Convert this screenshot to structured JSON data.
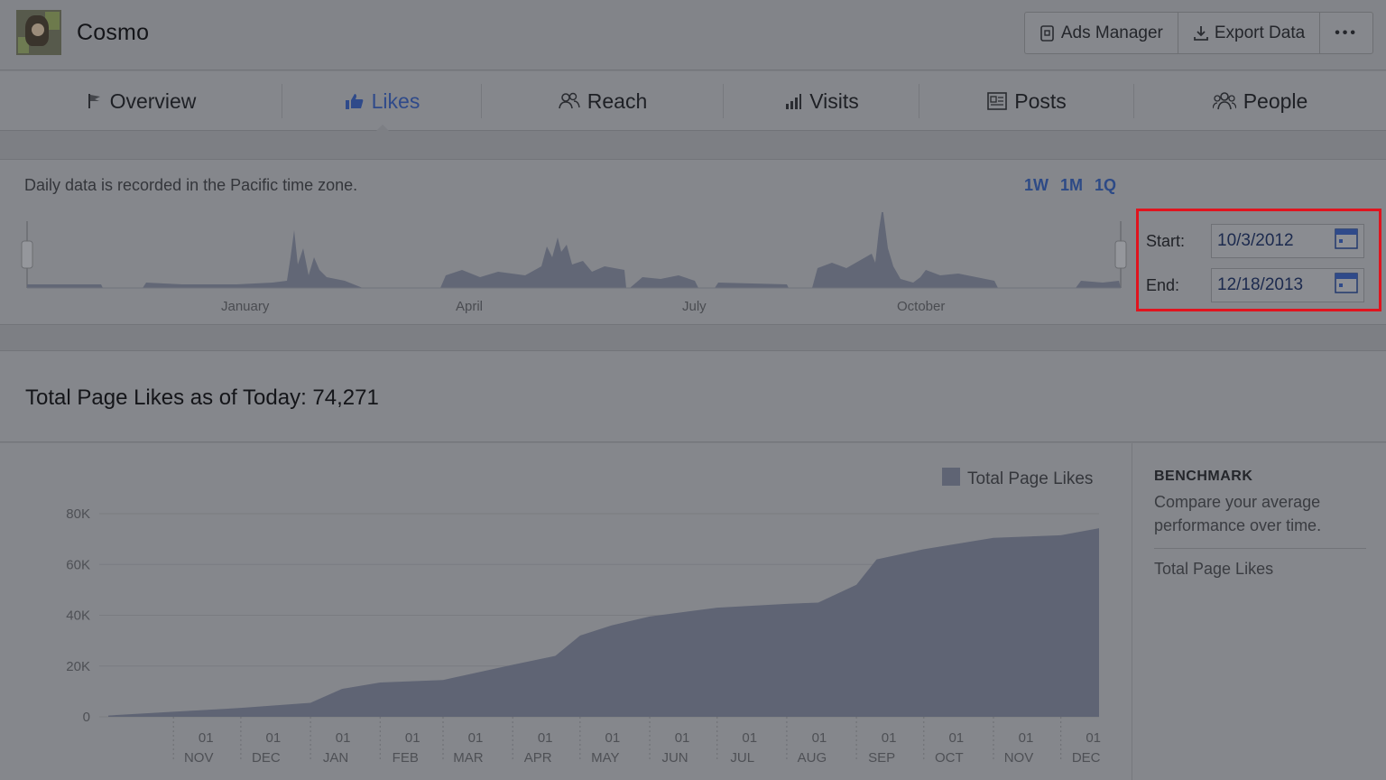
{
  "header": {
    "page_name": "Cosmo",
    "buttons": {
      "ads_manager": "Ads Manager",
      "export_data": "Export Data",
      "more": "•••"
    }
  },
  "tabs": [
    {
      "label": "Overview",
      "icon": "flag-icon"
    },
    {
      "label": "Likes",
      "icon": "thumbs-up-icon",
      "active": true
    },
    {
      "label": "Reach",
      "icon": "people-icon"
    },
    {
      "label": "Visits",
      "icon": "bar-signal-icon"
    },
    {
      "label": "Posts",
      "icon": "posts-icon"
    },
    {
      "label": "People",
      "icon": "group-icon"
    }
  ],
  "timeline": {
    "note": "Daily data is recorded in the Pacific time zone.",
    "ranges": [
      "1W",
      "1M",
      "1Q"
    ],
    "month_labels": [
      "January",
      "April",
      "July",
      "October"
    ],
    "start_label": "Start:",
    "start_value": "10/3/2012",
    "end_label": "End:",
    "end_value": "12/18/2013"
  },
  "total": {
    "title": "Total Page Likes as of Today: 74,271"
  },
  "benchmark": {
    "title": "BENCHMARK",
    "description": "Compare your average performance over time.",
    "item": "Total Page Likes"
  },
  "colors": {
    "accent": "#2f4a8a",
    "highlight_border": "#e0141e",
    "area_fill": "#5f6474"
  },
  "chart_data": {
    "type": "area",
    "legend": "Total Page Likes",
    "legend_position": "top-right",
    "y_ticks": [
      "0",
      "20K",
      "40K",
      "60K",
      "80K"
    ],
    "ylim": [
      0,
      80000
    ],
    "x_tick_days": [
      "01",
      "01",
      "01",
      "01",
      "01",
      "01",
      "01",
      "01",
      "01",
      "01",
      "01",
      "01",
      "01",
      "01"
    ],
    "x_tick_months": [
      "NOV",
      "DEC",
      "JAN",
      "FEB",
      "MAR",
      "APR",
      "MAY",
      "JUN",
      "JUL",
      "AUG",
      "SEP",
      "OCT",
      "NOV",
      "DEC"
    ],
    "series": [
      {
        "name": "Total Page Likes",
        "x": [
          "2012-10-03",
          "2012-11-01",
          "2012-12-01",
          "2013-01-01",
          "2013-01-15",
          "2013-02-01",
          "2013-03-01",
          "2013-04-01",
          "2013-04-20",
          "2013-05-01",
          "2013-05-15",
          "2013-06-01",
          "2013-07-01",
          "2013-08-01",
          "2013-08-15",
          "2013-09-01",
          "2013-09-10",
          "2013-10-01",
          "2013-11-01",
          "2013-12-01",
          "2013-12-18"
        ],
        "values": [
          500,
          2000,
          3500,
          5500,
          11000,
          13500,
          14500,
          20500,
          24000,
          32000,
          36000,
          39500,
          43000,
          44500,
          45000,
          52000,
          62000,
          66000,
          70500,
          71500,
          74271
        ]
      }
    ]
  }
}
